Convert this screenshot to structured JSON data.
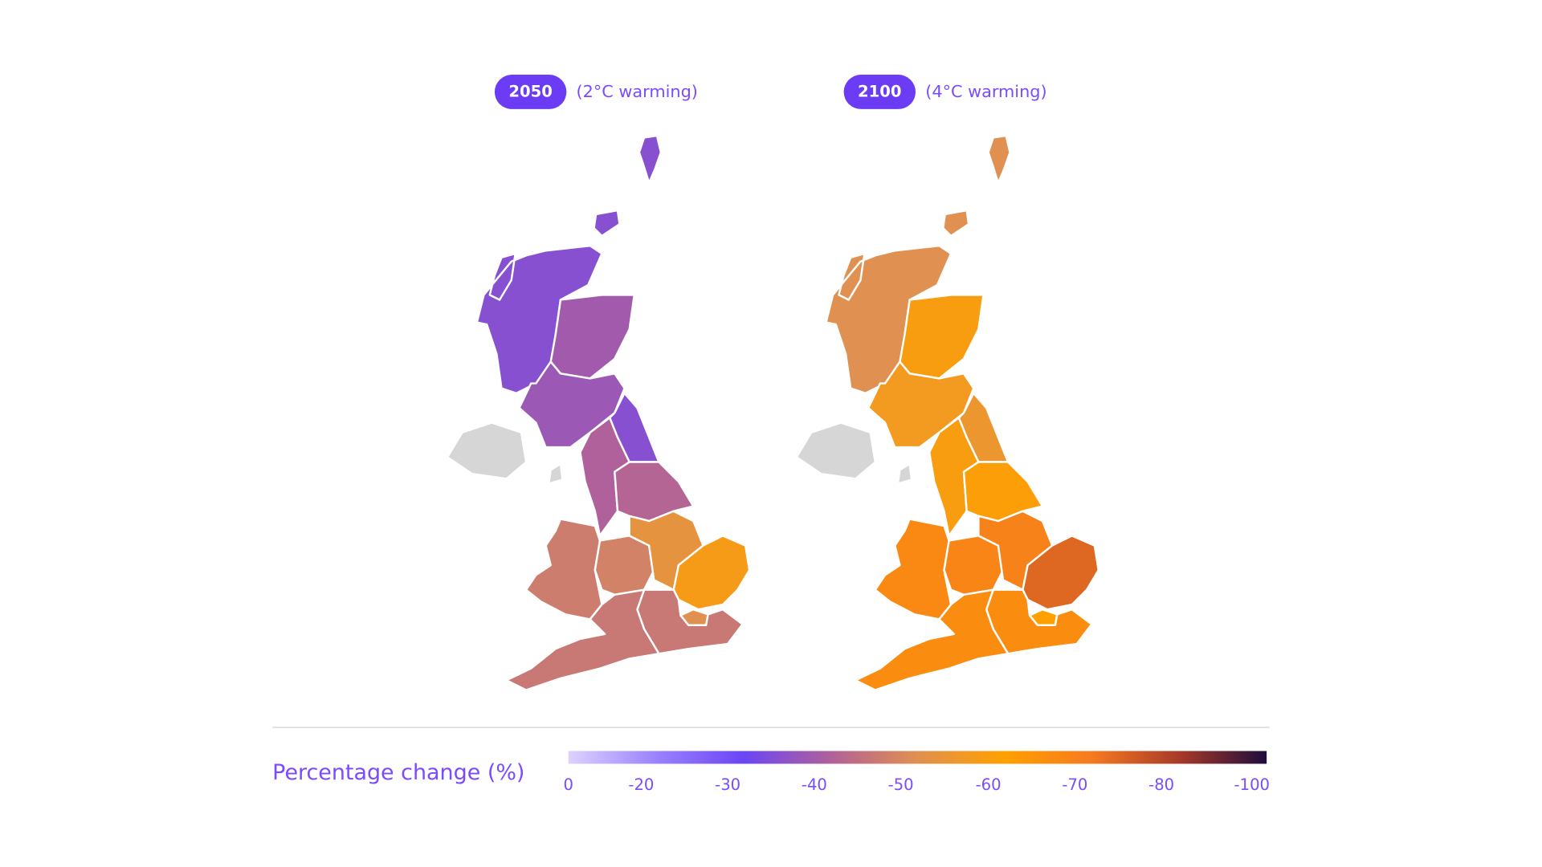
{
  "maps": [
    {
      "year": "2050",
      "subtitle": "(2°C warming)",
      "values": [
        -34,
        -38,
        -37,
        -34,
        -40,
        -41,
        -46,
        -47,
        -52,
        -57,
        -50,
        -45,
        -45,
        null
      ]
    },
    {
      "year": "2100",
      "subtitle": "(4°C warming)",
      "values": [
        -50,
        -58,
        -56,
        -54,
        -58,
        -59,
        -66,
        -67,
        -68,
        -73,
        -60,
        -65,
        -65,
        null
      ]
    }
  ],
  "legend": {
    "title": "Percentage change (%)",
    "ticks": [
      0,
      -20,
      -30,
      -40,
      -50,
      -60,
      -70,
      -80,
      -100
    ],
    "colors": [
      "#dcd2ff",
      "#9c82ff",
      "#6b46f5",
      "#b0609a",
      "#e09050",
      "#ffa000",
      "#f57a20",
      "#a83a28",
      "#1e0c3c"
    ]
  },
  "no_data_color": "#d6d6d6",
  "badge_color": "#6c3cf5"
}
